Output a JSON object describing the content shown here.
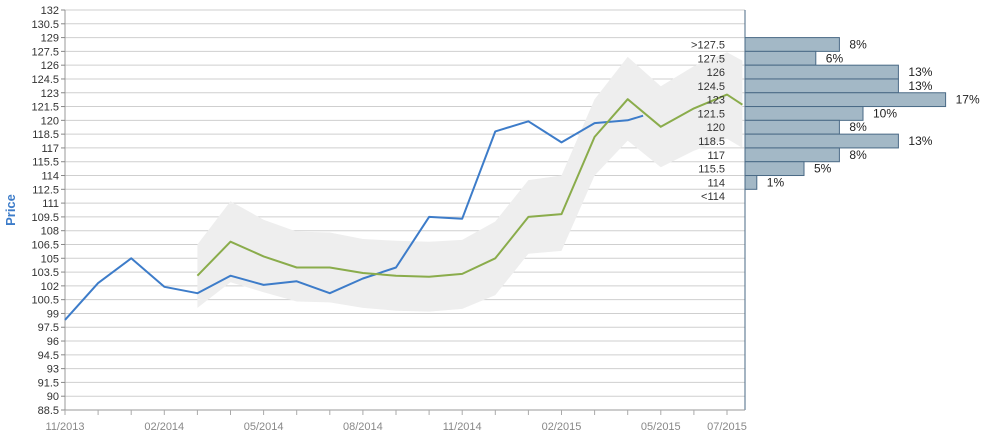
{
  "chart_data": {
    "type": "line",
    "ylabel": "Price",
    "xlabel": "",
    "ylim": [
      88.5,
      132
    ],
    "y_ticks": [
      "88.5",
      "90",
      "91.5",
      "93",
      "94.5",
      "96",
      "97.5",
      "99",
      "100.5",
      "102",
      "103.5",
      "105",
      "106.5",
      "108",
      "109.5",
      "111",
      "112.5",
      "114",
      "115.5",
      "117",
      "118.5",
      "120",
      "121.5",
      "123",
      "124.5",
      "126",
      "127.5",
      "129",
      "130.5",
      "132"
    ],
    "x_ticks": [
      "11/2013",
      "02/2014",
      "05/2014",
      "08/2014",
      "11/2014",
      "02/2015",
      "05/2015",
      "07/2015"
    ],
    "grid": true,
    "series": [
      {
        "values": [
          {
            "x": "2013-11",
            "y": 98.3
          },
          {
            "x": "2013-12",
            "y": 102.3
          },
          {
            "x": "2014-01",
            "y": 105.0
          },
          {
            "x": "2014-02",
            "y": 101.9
          },
          {
            "x": "2014-03",
            "y": 101.2
          },
          {
            "x": "2014-04",
            "y": 103.1
          },
          {
            "x": "2014-05",
            "y": 102.1
          },
          {
            "x": "2014-06",
            "y": 102.5
          },
          {
            "x": "2014-07",
            "y": 101.2
          },
          {
            "x": "2014-08",
            "y": 102.8
          },
          {
            "x": "2014-09",
            "y": 104.0
          },
          {
            "x": "2014-10",
            "y": 109.5
          },
          {
            "x": "2014-11",
            "y": 109.3
          },
          {
            "x": "2014-12",
            "y": 118.8
          },
          {
            "x": "2015-01",
            "y": 119.9
          },
          {
            "x": "2015-02",
            "y": 117.6
          },
          {
            "x": "2015-03",
            "y": 119.7
          },
          {
            "x": "2015-04",
            "y": 120.0
          },
          {
            "x": "2015-04-15",
            "y": 120.5
          }
        ],
        "color": "#3d7cc9"
      },
      {
        "values": [
          {
            "x": "2014-03",
            "y": 103.1
          },
          {
            "x": "2014-04",
            "y": 106.8
          },
          {
            "x": "2014-05",
            "y": 105.2
          },
          {
            "x": "2014-06",
            "y": 104.0
          },
          {
            "x": "2014-07",
            "y": 104.0
          },
          {
            "x": "2014-08",
            "y": 103.4
          },
          {
            "x": "2014-09",
            "y": 103.1
          },
          {
            "x": "2014-10",
            "y": 103.0
          },
          {
            "x": "2014-11",
            "y": 103.3
          },
          {
            "x": "2014-12",
            "y": 105.0
          },
          {
            "x": "2015-01",
            "y": 109.5
          },
          {
            "x": "2015-02",
            "y": 109.8
          },
          {
            "x": "2015-03",
            "y": 118.2
          },
          {
            "x": "2015-04",
            "y": 122.3
          },
          {
            "x": "2015-05",
            "y": 119.3
          },
          {
            "x": "2015-06",
            "y": 121.3
          },
          {
            "x": "2015-07",
            "y": 122.8
          },
          {
            "x": "2015-07-15",
            "y": 121.7
          }
        ],
        "color": "#8aac4b"
      }
    ],
    "band": {
      "color": "#eeeeee",
      "upper": [
        {
          "x": "2014-03",
          "y": 106.5
        },
        {
          "x": "2014-04",
          "y": 111.2
        },
        {
          "x": "2014-05",
          "y": 109.2
        },
        {
          "x": "2014-06",
          "y": 107.9
        },
        {
          "x": "2014-07",
          "y": 107.8
        },
        {
          "x": "2014-08",
          "y": 107.1
        },
        {
          "x": "2014-09",
          "y": 106.9
        },
        {
          "x": "2014-10",
          "y": 106.8
        },
        {
          "x": "2014-11",
          "y": 107.0
        },
        {
          "x": "2014-12",
          "y": 109.0
        },
        {
          "x": "2015-01",
          "y": 113.5
        },
        {
          "x": "2015-02",
          "y": 114.0
        },
        {
          "x": "2015-03",
          "y": 122.3
        },
        {
          "x": "2015-04",
          "y": 126.9
        },
        {
          "x": "2015-05",
          "y": 123.7
        },
        {
          "x": "2015-06",
          "y": 125.9
        },
        {
          "x": "2015-07",
          "y": 127.4
        },
        {
          "x": "2015-07-15",
          "y": 126.5
        }
      ],
      "lower": [
        {
          "x": "2014-03",
          "y": 99.6
        },
        {
          "x": "2014-04",
          "y": 102.4
        },
        {
          "x": "2014-05",
          "y": 101.3
        },
        {
          "x": "2014-06",
          "y": 100.3
        },
        {
          "x": "2014-07",
          "y": 100.2
        },
        {
          "x": "2014-08",
          "y": 99.6
        },
        {
          "x": "2014-09",
          "y": 99.3
        },
        {
          "x": "2014-10",
          "y": 99.2
        },
        {
          "x": "2014-11",
          "y": 99.5
        },
        {
          "x": "2014-12",
          "y": 101.0
        },
        {
          "x": "2015-01",
          "y": 105.5
        },
        {
          "x": "2015-02",
          "y": 105.8
        },
        {
          "x": "2015-03",
          "y": 114.0
        },
        {
          "x": "2015-04",
          "y": 117.8
        },
        {
          "x": "2015-05",
          "y": 114.9
        },
        {
          "x": "2015-06",
          "y": 116.7
        },
        {
          "x": "2015-07",
          "y": 118.0
        },
        {
          "x": "2015-07-15",
          "y": 117.0
        }
      ]
    },
    "distribution": {
      "color": "#a3b8c6",
      "bins": [
        {
          "label": ">127.5",
          "percent": "8%",
          "value": 8,
          "y_from": 129,
          "y_to": 127.5
        },
        {
          "label": "127.5",
          "percent": "6%",
          "value": 6,
          "y_from": 127.5,
          "y_to": 126
        },
        {
          "label": "126",
          "percent": "13%",
          "value": 13,
          "y_from": 126,
          "y_to": 124.5
        },
        {
          "label": "124.5",
          "percent": "13%",
          "value": 13,
          "y_from": 124.5,
          "y_to": 123
        },
        {
          "label": "123",
          "percent": "17%",
          "value": 17,
          "y_from": 123,
          "y_to": 121.5
        },
        {
          "label": "121.5",
          "percent": "10%",
          "value": 10,
          "y_from": 121.5,
          "y_to": 120
        },
        {
          "label": "120",
          "percent": "8%",
          "value": 8,
          "y_from": 120,
          "y_to": 118.5
        },
        {
          "label": "118.5",
          "percent": "13%",
          "value": 13,
          "y_from": 118.5,
          "y_to": 117
        },
        {
          "label": "117",
          "percent": "8%",
          "value": 8,
          "y_from": 117,
          "y_to": 115.5
        },
        {
          "label": "115.5",
          "percent": "5%",
          "value": 5,
          "y_from": 115.5,
          "y_to": 114
        },
        {
          "label": "114",
          "percent": "1%",
          "value": 1,
          "y_from": 114,
          "y_to": 112.5
        },
        {
          "label": "<114",
          "percent": "",
          "value": 0,
          "y_from": 112.5,
          "y_to": 111
        }
      ]
    }
  }
}
